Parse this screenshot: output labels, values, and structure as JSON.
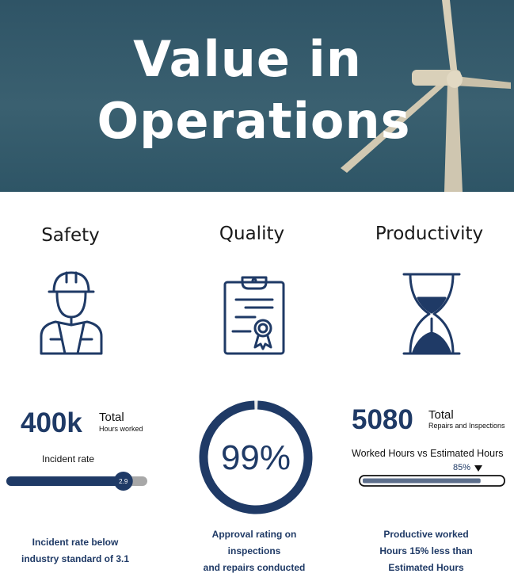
{
  "hero": {
    "title_line1": "Value in",
    "title_line2": "Operations",
    "image": "wind-turbine"
  },
  "colors": {
    "navy": "#1f3a66",
    "hero_bg": "#355b6c",
    "track": "#a8a8a8"
  },
  "safety": {
    "title": "Safety",
    "icon": "construction-worker-icon",
    "stat_value": "400k",
    "stat_label": "Total",
    "stat_sub": "Hours worked",
    "rate_label": "Incident rate",
    "rate_value": "2.9",
    "rate_fraction": 0.83,
    "footer": "Incident rate below\nindustry standard of 3.1"
  },
  "quality": {
    "title": "Quality",
    "icon": "certificate-clipboard-icon",
    "percent": "99%",
    "percent_value": 99,
    "footer": "Approval rating on\ninspections\nand repairs conducted"
  },
  "productivity": {
    "title": "Productivity",
    "icon": "hourglass-icon",
    "stat_value": "5080",
    "stat_label": "Total",
    "stat_sub": "Repairs and Inspections",
    "compare_label": "Worked Hours vs Estimated Hours",
    "progress_label": "85%",
    "progress_value": 85,
    "footer": "Productive worked\nHours 15% less than\nEstimated Hours"
  }
}
